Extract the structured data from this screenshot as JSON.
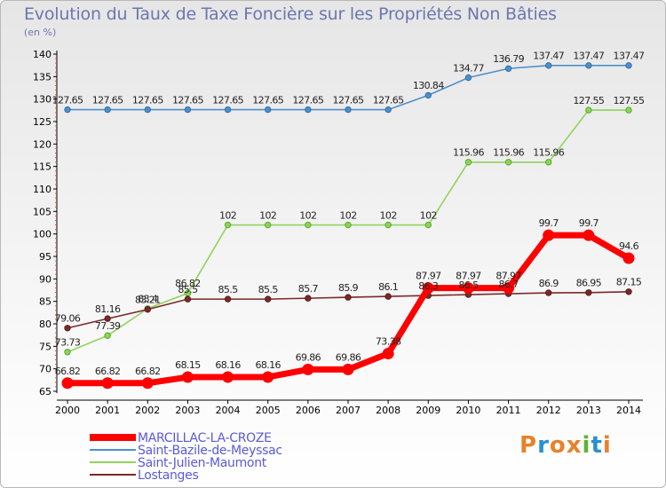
{
  "header": {
    "title": "Evolution du Taux de Taxe Foncière sur les Propriétés Non Bâties",
    "unit": "(en %)"
  },
  "logo": {
    "text": "Proxiti",
    "colors": [
      "#e8812b",
      "#2a8fd0",
      "#e8812b",
      "#e8812b",
      "#5fb336",
      "#2a8fd0",
      "#e8812b"
    ]
  },
  "chart_data": {
    "type": "line",
    "title": "Evolution du Taux de Taxe Foncière sur les Propriétés Non Bâties",
    "ylabel": "(en %)",
    "xlabel": "",
    "x": [
      "2000",
      "2001",
      "2002",
      "2003",
      "2004",
      "2005",
      "2006",
      "2007",
      "2008",
      "2009",
      "2010",
      "2011",
      "2012",
      "2013",
      "2014"
    ],
    "ylim": [
      65,
      140
    ],
    "yticks": [
      65,
      70,
      75,
      80,
      85,
      90,
      95,
      100,
      105,
      110,
      115,
      120,
      125,
      130,
      135,
      140
    ],
    "grid": false,
    "legend_position": "bottom-left",
    "series": [
      {
        "name": "Saint-Bazile-de-Meyssac",
        "color": "#4f8fc9",
        "values": [
          127.65,
          127.65,
          127.65,
          127.65,
          127.65,
          127.65,
          127.65,
          127.65,
          127.65,
          130.84,
          134.77,
          136.79,
          137.47,
          137.47,
          137.47
        ],
        "labels": [
          "127.65",
          "127.65",
          "127.65",
          "127.65",
          "127.65",
          "127.65",
          "127.65",
          "127.65",
          "127.65",
          "130.84",
          "134.77",
          "136.79",
          "137.47",
          "137.47",
          "137.47"
        ]
      },
      {
        "name": "Saint-Julien-Maumont",
        "color": "#8fd45a",
        "values": [
          73.73,
          77.39,
          83.4,
          86.82,
          102,
          102,
          102,
          102,
          102,
          102,
          115.96,
          115.96,
          115.96,
          127.55,
          127.55
        ],
        "labels": [
          "73.73",
          "77.39",
          "83.4",
          "86.82",
          "102",
          "102",
          "102",
          "102",
          "102",
          "102",
          "115.96",
          "115.96",
          "115.96",
          "127.55",
          "127.55"
        ]
      },
      {
        "name": "Lostanges",
        "color": "#7a2a2a",
        "values": [
          79.06,
          81.16,
          83.21,
          85.5,
          85.5,
          85.5,
          85.7,
          85.9,
          86.1,
          86.3,
          86.5,
          86.7,
          86.9,
          86.95,
          87.15
        ],
        "labels": [
          "79.06",
          "81.16",
          "83.21",
          "85.5",
          "85.5",
          "85.5",
          "85.7",
          "85.9",
          "86.1",
          "86.3",
          "86.5",
          "86.7",
          "86.9",
          "86.95",
          "87.15"
        ]
      },
      {
        "name": "MARCILLAC-LA-CROZE",
        "color": "#ff0000",
        "values": [
          66.82,
          66.82,
          66.82,
          68.15,
          68.16,
          68.16,
          69.86,
          69.86,
          73.38,
          87.97,
          87.97,
          87.97,
          99.7,
          99.7,
          94.6
        ],
        "labels": [
          "66.82",
          "66.82",
          "66.82",
          "68.15",
          "68.16",
          "68.16",
          "69.86",
          "69.86",
          "73.38",
          "87.97",
          "87.97",
          "87.97",
          "99.7",
          "99.7",
          "94.6"
        ]
      }
    ],
    "legend_order": [
      "MARCILLAC-LA-CROZE",
      "Saint-Bazile-de-Meyssac",
      "Saint-Julien-Maumont",
      "Lostanges"
    ]
  }
}
